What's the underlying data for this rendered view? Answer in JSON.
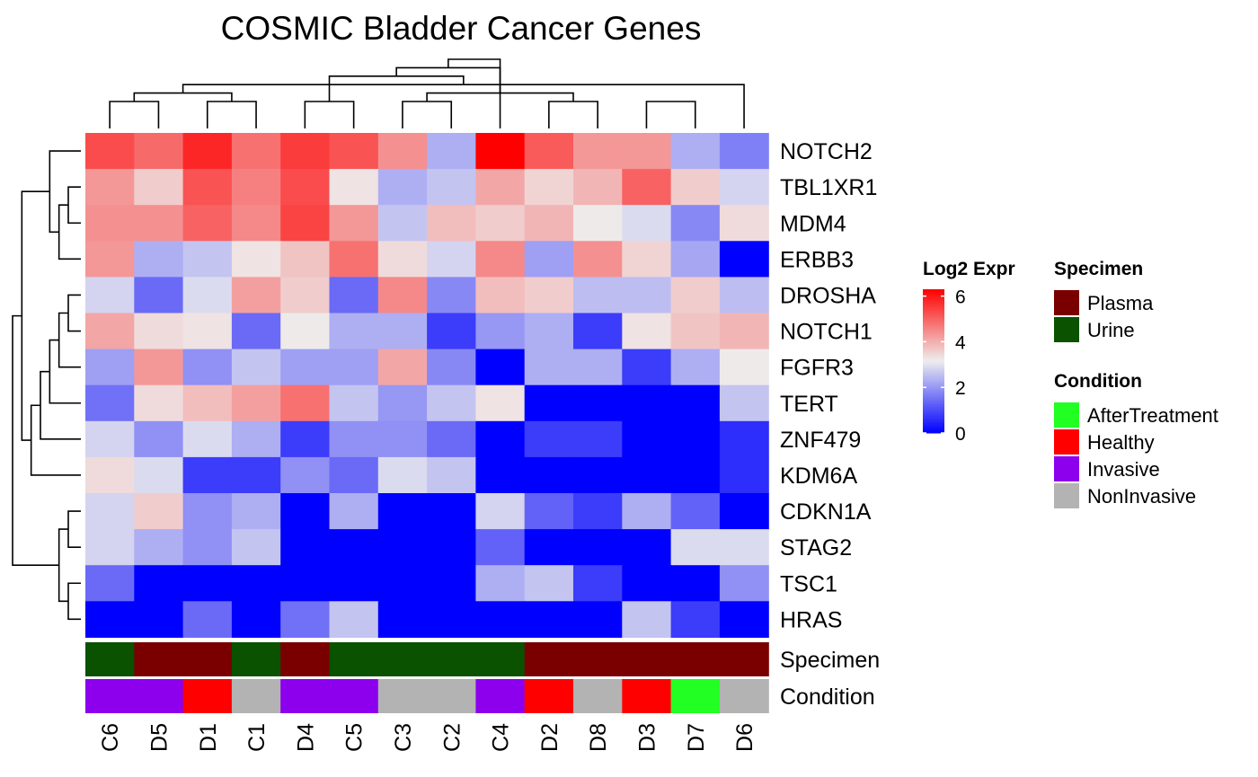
{
  "chart_data": {
    "type": "heatmap",
    "title": "COSMIC Bladder Cancer Genes",
    "columns": [
      "C6",
      "D5",
      "D1",
      "C1",
      "D4",
      "C5",
      "C3",
      "C2",
      "C4",
      "D2",
      "D8",
      "D3",
      "D7",
      "D6"
    ],
    "rows": [
      "NOTCH2",
      "TBL1XR1",
      "MDM4",
      "ERBB3",
      "DROSHA",
      "NOTCH1",
      "FGFR3",
      "TERT",
      "ZNF479",
      "KDM6A",
      "CDKN1A",
      "STAG2",
      "TSC1",
      "HRAS"
    ],
    "values": [
      [
        5.3,
        4.9,
        5.8,
        4.8,
        5.5,
        5.2,
        4.4,
        2.3,
        6.3,
        5.1,
        4.3,
        4.3,
        2.3,
        1.7
      ],
      [
        4.3,
        3.6,
        5.2,
        4.6,
        5.3,
        3.3,
        2.3,
        2.6,
        4.1,
        3.5,
        3.9,
        5.0,
        3.6,
        2.8
      ],
      [
        4.4,
        4.4,
        5.0,
        4.5,
        5.4,
        4.3,
        2.6,
        3.8,
        3.6,
        3.9,
        3.2,
        2.9,
        1.8,
        3.4
      ],
      [
        4.3,
        2.3,
        2.6,
        3.3,
        3.7,
        4.8,
        3.4,
        2.8,
        4.5,
        2.1,
        4.4,
        3.5,
        2.2,
        0.0
      ],
      [
        2.8,
        1.4,
        2.9,
        4.2,
        3.6,
        1.4,
        4.5,
        1.8,
        3.8,
        3.6,
        2.5,
        2.5,
        3.6,
        2.5
      ],
      [
        4.1,
        3.4,
        3.3,
        1.4,
        3.2,
        2.3,
        2.3,
        0.8,
        2.0,
        2.3,
        0.8,
        3.3,
        3.7,
        3.9
      ],
      [
        2.1,
        4.3,
        1.9,
        2.6,
        2.1,
        2.1,
        4.1,
        1.8,
        0.0,
        2.3,
        2.3,
        0.8,
        2.3,
        3.2
      ],
      [
        1.5,
        3.4,
        3.8,
        4.2,
        4.8,
        2.6,
        2.0,
        2.6,
        3.3,
        0.0,
        0.0,
        0.0,
        0.0,
        2.6
      ],
      [
        2.8,
        1.9,
        2.9,
        2.3,
        0.8,
        1.9,
        1.9,
        1.4,
        0.0,
        0.8,
        0.8,
        0.0,
        0.0,
        0.6
      ],
      [
        3.4,
        2.9,
        0.8,
        0.8,
        1.9,
        1.4,
        2.9,
        2.6,
        0.0,
        0.0,
        0.0,
        0.0,
        0.0,
        0.6
      ],
      [
        2.8,
        3.6,
        1.9,
        2.3,
        0.0,
        2.3,
        0.0,
        0.0,
        2.8,
        1.3,
        0.8,
        2.3,
        1.3,
        0.0
      ],
      [
        2.8,
        2.3,
        1.9,
        2.6,
        0.0,
        0.0,
        0.0,
        0.0,
        1.3,
        0.0,
        0.0,
        0.0,
        2.9,
        2.9
      ],
      [
        1.4,
        0.0,
        0.0,
        0.0,
        0.0,
        0.0,
        0.0,
        0.0,
        2.3,
        2.6,
        0.8,
        0.0,
        0.0,
        1.9
      ],
      [
        0.0,
        0.0,
        1.4,
        0.0,
        1.5,
        2.6,
        0.0,
        0.0,
        0.0,
        0.0,
        0.0,
        2.6,
        0.8,
        0.0
      ]
    ],
    "colorbar": {
      "title": "Log2 Expr",
      "ticks": [
        0,
        2,
        4,
        6
      ],
      "min": 0,
      "max": 6.3,
      "mid": 3.15
    },
    "colors": {
      "low": "#0000FF",
      "mid": "#EEEEEE",
      "high": "#FF0000"
    },
    "annotations": [
      {
        "name": "Specimen",
        "values": [
          "Urine",
          "Plasma",
          "Plasma",
          "Urine",
          "Plasma",
          "Urine",
          "Urine",
          "Urine",
          "Urine",
          "Plasma",
          "Plasma",
          "Plasma",
          "Plasma",
          "Plasma"
        ],
        "legend": [
          {
            "label": "Plasma",
            "color": "#7A0000"
          },
          {
            "label": "Urine",
            "color": "#0A5200"
          }
        ]
      },
      {
        "name": "Condition",
        "values": [
          "Invasive",
          "Invasive",
          "Healthy",
          "NonInvasive",
          "Invasive",
          "Invasive",
          "NonInvasive",
          "NonInvasive",
          "Invasive",
          "Healthy",
          "NonInvasive",
          "Healthy",
          "AfterTreatment",
          "NonInvasive"
        ],
        "legend": [
          {
            "label": "AfterTreatment",
            "color": "#22FF22"
          },
          {
            "label": "Healthy",
            "color": "#FF0000"
          },
          {
            "label": "Invasive",
            "color": "#8C00EE"
          },
          {
            "label": "NonInvasive",
            "color": "#B3B3B3"
          }
        ]
      }
    ],
    "column_dendrogram": [
      [
        0,
        1
      ],
      [
        2,
        3
      ],
      [
        4,
        5
      ],
      [
        6,
        7
      ],
      [
        9,
        10
      ],
      [
        11,
        12
      ],
      [
        -2,
        -1
      ],
      [
        -5,
        -4
      ],
      [
        -7,
        13
      ],
      [
        -3,
        -9
      ],
      [
        -10,
        8
      ],
      [
        -11,
        -8
      ]
    ],
    "row_dendrogram": [
      [
        1,
        2
      ],
      [
        -1,
        3
      ],
      [
        4,
        5
      ],
      [
        12,
        13
      ],
      [
        0,
        -2
      ],
      [
        -3,
        6
      ],
      [
        -6,
        7
      ],
      [
        -7,
        8
      ],
      [
        -8,
        9
      ],
      [
        10,
        11
      ],
      [
        -10,
        -4
      ],
      [
        -5,
        -9
      ],
      [
        -12,
        -11
      ]
    ],
    "legend_placement": "right"
  }
}
